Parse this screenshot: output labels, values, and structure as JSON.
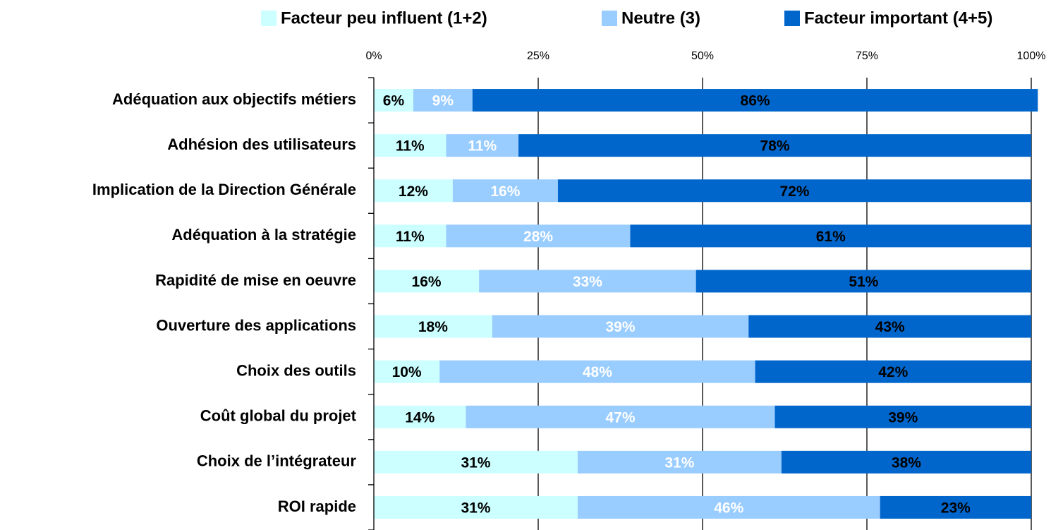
{
  "chart_data": {
    "type": "stacked_bar_horizontal",
    "categories": [
      "Adéquation aux objectifs métiers",
      "Adhésion des utilisateurs",
      "Implication de la Direction Générale",
      "Adéquation à la stratégie",
      "Rapidité de mise en oeuvre",
      "Ouverture des applications",
      "Choix des outils",
      "Coût global du projet",
      "Choix de l’intégrateur",
      "ROI rapide"
    ],
    "series": [
      {
        "name": "Facteur peu influent (1+2)",
        "color": "#ccffff",
        "label_color": "#000000",
        "values": [
          6,
          11,
          12,
          11,
          16,
          18,
          10,
          14,
          31,
          31
        ],
        "value_labels": [
          "6%",
          "11%",
          "12%",
          "11%",
          "16%",
          "18%",
          "10%",
          "14%",
          "31%",
          "31%"
        ]
      },
      {
        "name": "Neutre (3)",
        "color": "#99ccff",
        "label_color": "#ffffff",
        "values": [
          9,
          11,
          16,
          28,
          33,
          39,
          48,
          47,
          31,
          46
        ],
        "value_labels": [
          "9%",
          "11%",
          "16%",
          "28%",
          "33%",
          "39%",
          "48%",
          "47%",
          "31%",
          "46%"
        ]
      },
      {
        "name": "Facteur important (4+5)",
        "color": "#0066cc",
        "label_color": "#000000",
        "values": [
          86,
          78,
          72,
          61,
          51,
          43,
          42,
          39,
          38,
          23
        ],
        "value_labels": [
          "86%",
          "78%",
          "72%",
          "61%",
          "51%",
          "43%",
          "42%",
          "39%",
          "38%",
          "23%"
        ]
      }
    ],
    "xlim": [
      0,
      100
    ],
    "xticks": [
      {
        "value": 0,
        "label": "0%"
      },
      {
        "value": 25,
        "label": "25%"
      },
      {
        "value": 50,
        "label": "50%"
      },
      {
        "value": 75,
        "label": "75%"
      },
      {
        "value": 100,
        "label": "100%"
      }
    ],
    "grid": true,
    "legend": "top"
  }
}
